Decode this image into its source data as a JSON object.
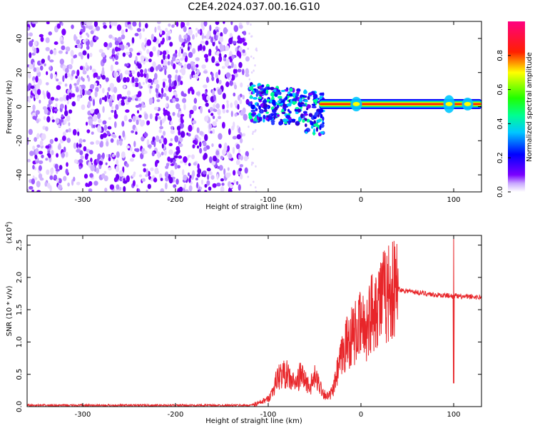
{
  "title": "C2E4.2024.037.00.16.G10",
  "colors": {
    "snr_line": "#e8262a",
    "axis": "#000000",
    "colormap": [
      "#ffffff",
      "#7b00ff",
      "#0000ff",
      "#00c8ff",
      "#00ff80",
      "#20ff00",
      "#ffff00",
      "#ff2000",
      "#ff0080"
    ]
  },
  "chart_data": [
    {
      "type": "heatmap",
      "xlabel": "Height of straight line (km)",
      "ylabel": "Frequency (Hz)",
      "xlim": [
        -360,
        130
      ],
      "ylim": [
        -50,
        50
      ],
      "x_ticks": [
        -300,
        -200,
        -100,
        0,
        100
      ],
      "y_ticks": [
        -40,
        -20,
        0,
        20,
        40
      ],
      "colorbar": {
        "label": "Normalized spectral amplitude",
        "range": [
          0,
          1
        ],
        "ticks": [
          "0.0",
          "0.2",
          "0.4",
          "0.6",
          "0.8"
        ]
      },
      "regions": [
        {
          "x_range": [
            -360,
            -120
          ],
          "freq_range": [
            -50,
            50
          ],
          "amplitude": "0.05-0.3 (noise)"
        },
        {
          "x_range": [
            -120,
            -40
          ],
          "freq_range": [
            -18,
            14
          ],
          "amplitude": "0.2-0.6"
        },
        {
          "x_range": [
            -40,
            130
          ],
          "freq_center": 1.5,
          "freq_width": 6,
          "amplitude": "0.8-1.0"
        }
      ]
    },
    {
      "type": "line",
      "xlabel": "Height of straight line (km)",
      "ylabel": "SNR (10 * v/v)",
      "y_scale_label": "(x10",
      "y_scale_exp": "4",
      "y_scale_close": ")",
      "xlim": [
        -360,
        130
      ],
      "ylim": [
        0,
        2.65
      ],
      "x_ticks": [
        -300,
        -200,
        -100,
        0,
        100
      ],
      "y_ticks": [
        "0.0",
        "0.5",
        "1.0",
        "1.5",
        "2.0",
        "2.5"
      ],
      "series": [
        {
          "x": [
            -360,
            -300,
            -200,
            -120,
            -110,
            -100,
            -95,
            -90,
            -85,
            -80,
            -75,
            -70,
            -65,
            -60,
            -55,
            -50,
            -45,
            -40,
            -35,
            -30,
            -25,
            -20,
            -15,
            -10,
            -5,
            0,
            5,
            10,
            15,
            20,
            25,
            30,
            35,
            40,
            45,
            50,
            60,
            70,
            80,
            90,
            95,
            100,
            102,
            105,
            110,
            120,
            130
          ],
          "y": [
            0.02,
            0.02,
            0.02,
            0.02,
            0.05,
            0.12,
            0.25,
            0.45,
            0.5,
            0.5,
            0.4,
            0.35,
            0.5,
            0.4,
            0.3,
            0.45,
            0.35,
            0.2,
            0.15,
            0.25,
            0.55,
            0.8,
            1.0,
            1.1,
            1.15,
            1.25,
            1.2,
            1.4,
            1.6,
            1.65,
            1.7,
            1.78,
            1.8,
            1.82,
            1.8,
            1.79,
            1.77,
            1.75,
            1.73,
            1.72,
            1.72,
            1.7,
            1.72,
            1.7,
            1.7,
            1.7,
            1.69
          ]
        }
      ]
    }
  ]
}
